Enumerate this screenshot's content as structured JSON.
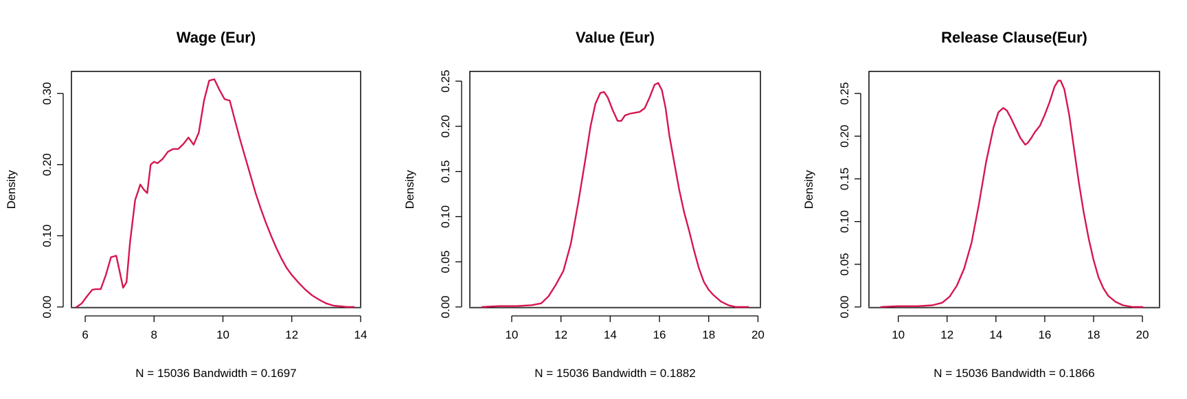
{
  "chart_data": [
    {
      "type": "line",
      "title": "Wage (Eur)",
      "ylabel": "Density",
      "xlabel": "N = 15036   Bandwidth = 0.1697",
      "xlim": [
        5.6,
        14.0
      ],
      "ylim": [
        0.0,
        0.33
      ],
      "xticks": [
        6,
        8,
        10,
        12,
        14
      ],
      "yticks": [
        0.0,
        0.1,
        0.2,
        0.3
      ],
      "ytick_labels": [
        "0.00",
        "0.10",
        "0.20",
        "0.30"
      ],
      "color": "#d5164f",
      "zero_line": true,
      "series": [
        {
          "x": [
            5.75,
            5.9,
            6.05,
            6.2,
            6.3,
            6.45,
            6.6,
            6.75,
            6.9,
            7.0,
            7.1,
            7.2,
            7.3,
            7.45,
            7.6,
            7.7,
            7.8,
            7.9,
            8.0,
            8.1,
            8.25,
            8.4,
            8.55,
            8.7,
            8.85,
            9.0,
            9.15,
            9.3,
            9.45,
            9.6,
            9.75,
            9.9,
            10.05,
            10.2,
            10.35,
            10.5,
            10.65,
            10.8,
            10.95,
            11.1,
            11.25,
            11.4,
            11.55,
            11.7,
            11.85,
            12.0,
            12.2,
            12.4,
            12.6,
            12.8,
            13.0,
            13.2,
            13.4,
            13.6,
            13.8
          ],
          "y": [
            0.0,
            0.005,
            0.015,
            0.024,
            0.025,
            0.025,
            0.045,
            0.07,
            0.072,
            0.05,
            0.027,
            0.035,
            0.09,
            0.15,
            0.172,
            0.165,
            0.16,
            0.2,
            0.204,
            0.202,
            0.208,
            0.218,
            0.222,
            0.222,
            0.229,
            0.238,
            0.228,
            0.245,
            0.29,
            0.318,
            0.32,
            0.305,
            0.292,
            0.29,
            0.262,
            0.235,
            0.21,
            0.185,
            0.16,
            0.138,
            0.118,
            0.1,
            0.083,
            0.068,
            0.055,
            0.045,
            0.034,
            0.024,
            0.016,
            0.01,
            0.005,
            0.002,
            0.001,
            0.0,
            0.0
          ]
        }
      ]
    },
    {
      "type": "line",
      "title": "Value (Eur)",
      "ylabel": "Density",
      "xlabel": "N = 15036   Bandwidth = 0.1882",
      "xlim": [
        8.3,
        20.1
      ],
      "ylim": [
        0.0,
        0.26
      ],
      "xticks": [
        10,
        12,
        14,
        16,
        18,
        20
      ],
      "yticks": [
        0.0,
        0.05,
        0.1,
        0.15,
        0.2,
        0.25
      ],
      "ytick_labels": [
        "0.00",
        "0.05",
        "0.10",
        "0.15",
        "0.20",
        "0.25"
      ],
      "color": "#d5164f",
      "zero_line": true,
      "series": [
        {
          "x": [
            8.8,
            9.5,
            10.2,
            10.8,
            11.2,
            11.5,
            11.8,
            12.1,
            12.4,
            12.7,
            13.0,
            13.2,
            13.4,
            13.6,
            13.75,
            13.9,
            14.1,
            14.3,
            14.45,
            14.6,
            14.8,
            15.0,
            15.2,
            15.4,
            15.6,
            15.8,
            15.95,
            16.1,
            16.25,
            16.4,
            16.6,
            16.8,
            17.0,
            17.2,
            17.4,
            17.6,
            17.8,
            18.0,
            18.2,
            18.5,
            18.8,
            19.1,
            19.4,
            19.6
          ],
          "y": [
            0.0,
            0.001,
            0.001,
            0.002,
            0.004,
            0.012,
            0.025,
            0.04,
            0.07,
            0.115,
            0.165,
            0.2,
            0.225,
            0.237,
            0.238,
            0.232,
            0.218,
            0.206,
            0.206,
            0.212,
            0.214,
            0.215,
            0.216,
            0.22,
            0.232,
            0.246,
            0.248,
            0.24,
            0.22,
            0.19,
            0.16,
            0.13,
            0.105,
            0.085,
            0.063,
            0.043,
            0.028,
            0.019,
            0.013,
            0.006,
            0.002,
            0.0,
            0.0,
            0.0
          ]
        }
      ]
    },
    {
      "type": "line",
      "title": "Release Clause(Eur)",
      "ylabel": "Density",
      "xlabel": "N = 15036   Bandwidth = 0.1866",
      "xlim": [
        8.8,
        20.7
      ],
      "ylim": [
        0.0,
        0.275
      ],
      "xticks": [
        10,
        12,
        14,
        16,
        18,
        20
      ],
      "yticks": [
        0.0,
        0.05,
        0.1,
        0.15,
        0.2,
        0.25
      ],
      "ytick_labels": [
        "0.00",
        "0.05",
        "0.10",
        "0.15",
        "0.20",
        "0.25"
      ],
      "color": "#d5164f",
      "zero_line": true,
      "series": [
        {
          "x": [
            9.3,
            10.0,
            10.8,
            11.4,
            11.8,
            12.1,
            12.4,
            12.7,
            13.0,
            13.3,
            13.6,
            13.9,
            14.1,
            14.3,
            14.45,
            14.6,
            14.8,
            15.0,
            15.2,
            15.3,
            15.45,
            15.6,
            15.8,
            16.0,
            16.2,
            16.4,
            16.55,
            16.65,
            16.8,
            17.0,
            17.2,
            17.4,
            17.6,
            17.8,
            18.0,
            18.2,
            18.4,
            18.6,
            18.9,
            19.2,
            19.6,
            20.0
          ],
          "y": [
            0.0,
            0.001,
            0.001,
            0.002,
            0.005,
            0.012,
            0.025,
            0.045,
            0.075,
            0.12,
            0.17,
            0.21,
            0.228,
            0.233,
            0.23,
            0.222,
            0.21,
            0.198,
            0.19,
            0.192,
            0.198,
            0.205,
            0.212,
            0.225,
            0.24,
            0.258,
            0.265,
            0.265,
            0.255,
            0.225,
            0.185,
            0.145,
            0.11,
            0.08,
            0.055,
            0.035,
            0.022,
            0.013,
            0.006,
            0.002,
            0.0,
            0.0
          ]
        }
      ]
    }
  ]
}
